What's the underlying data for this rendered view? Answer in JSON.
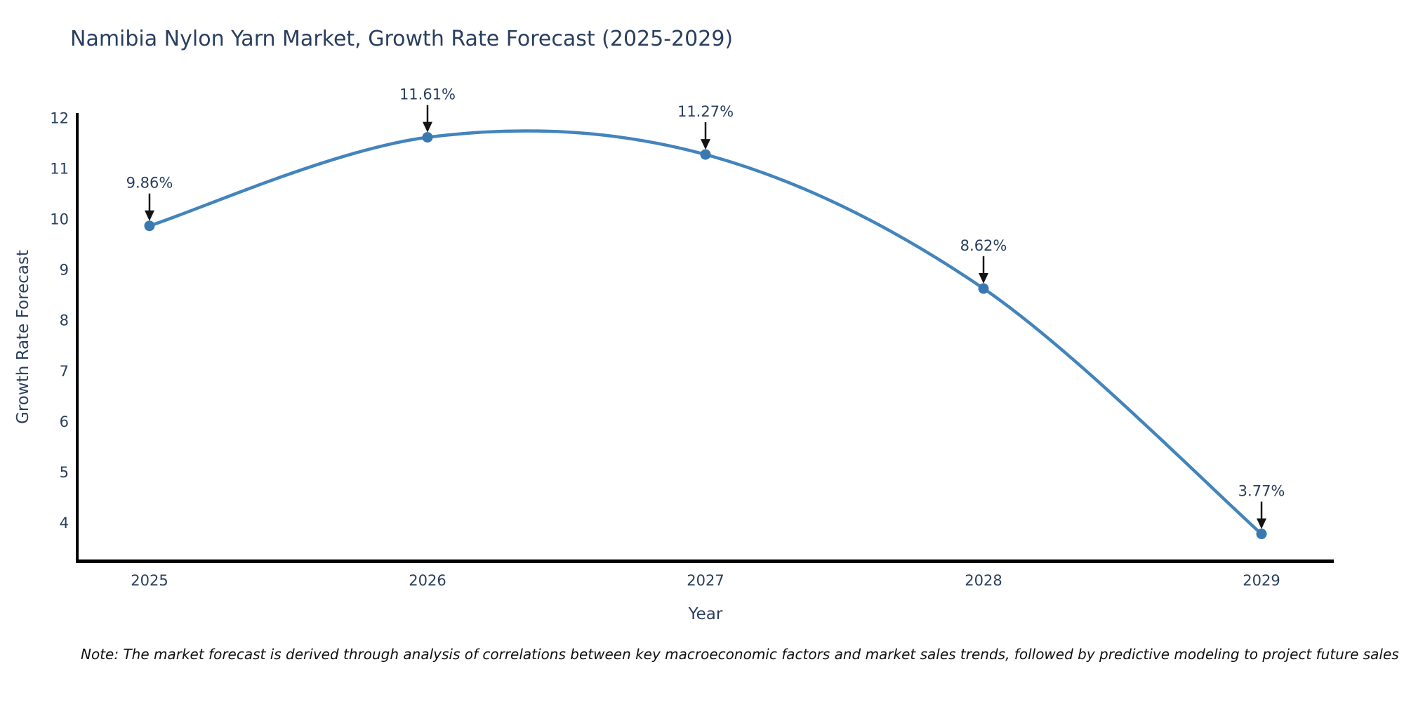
{
  "chart": {
    "note": "Note: The market forecast is derived through analysis of correlations between key macroeconomic factors and market sales trends, followed by predictive modeling to project future sales",
    "colors": {
      "line": "#4384bc",
      "marker": "#3a79b0",
      "axis_spine": "#000000",
      "tick_text": "#2a3f5f",
      "annotation_text": "#2a3f5f",
      "arrow": "#141414",
      "title_text": "#2a3f5f"
    }
  },
  "chart_data": {
    "type": "line",
    "title": "Namibia Nylon Yarn Market, Growth Rate Forecast (2025-2029)",
    "xlabel": "Year",
    "ylabel": "Growth Rate Forecast",
    "x": [
      2025,
      2026,
      2027,
      2028,
      2029
    ],
    "y": [
      9.86,
      11.61,
      11.27,
      8.62,
      3.77
    ],
    "point_labels": [
      "9.86%",
      "11.61%",
      "11.27%",
      "8.62%",
      "3.77%"
    ],
    "series_name": "Growth Rate Forecast",
    "line_shape": "spline",
    "markers": true,
    "grid": false,
    "legend_position": "none",
    "xticks": [
      2025,
      2026,
      2027,
      2028,
      2029
    ],
    "yticks": [
      4,
      5,
      6,
      7,
      8,
      9,
      10,
      11,
      12
    ],
    "xlim": [
      2024.74,
      2029.26
    ],
    "ylim": [
      3.25,
      12.09
    ]
  }
}
